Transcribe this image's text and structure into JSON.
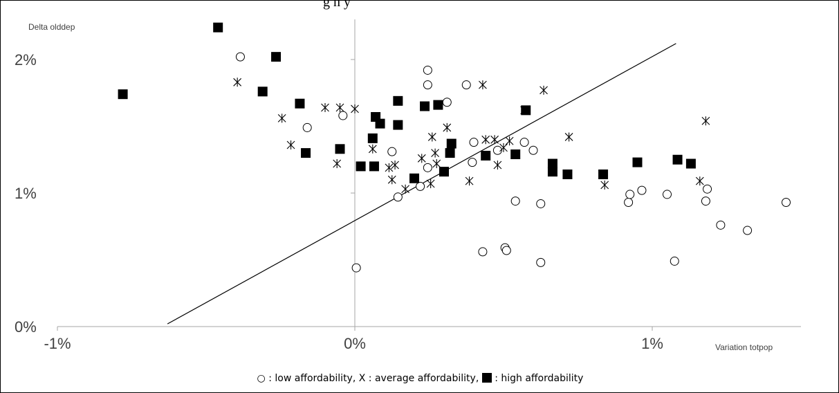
{
  "title_fragment": "g  n   y",
  "legend": {
    "low_symbol": "○",
    "low_label": ": low affordability,",
    "avg_label": "X : average affordability,",
    "high_label": ": high affordability"
  },
  "chart_data": {
    "type": "scatter",
    "xlabel": "Variation totpop",
    "ylabel": "Delta olddep",
    "xlim": [
      -1.0,
      1.5
    ],
    "ylim": [
      0.0,
      2.3
    ],
    "xticks": [
      {
        "v": -1.0,
        "label": "-1%"
      },
      {
        "v": 0.0,
        "label": "0%"
      },
      {
        "v": 1.0,
        "label": "1%"
      }
    ],
    "yticks": [
      {
        "v": 0.0,
        "label": "0%"
      },
      {
        "v": 1.0,
        "label": "1%"
      },
      {
        "v": 2.0,
        "label": "2%"
      }
    ],
    "trendline": {
      "x": [
        -0.63,
        1.08
      ],
      "y": [
        0.02,
        2.12
      ]
    },
    "series": [
      {
        "marker": "circle",
        "x": [
          -0.385,
          -0.16,
          -0.04,
          0.005,
          0.125,
          0.145,
          0.22,
          0.245,
          0.245,
          0.245,
          0.31,
          0.375,
          0.395,
          0.4,
          0.43,
          0.48,
          0.505,
          0.51,
          0.54,
          0.57,
          0.6,
          0.625,
          0.625,
          0.92,
          0.925,
          0.965,
          1.05,
          1.075,
          1.18,
          1.185,
          1.23,
          1.32,
          1.45
        ],
        "y": [
          2.02,
          1.49,
          1.58,
          0.44,
          1.31,
          0.97,
          1.05,
          1.19,
          1.81,
          1.92,
          1.68,
          1.81,
          1.23,
          1.38,
          0.56,
          1.32,
          0.59,
          0.57,
          0.94,
          1.38,
          1.32,
          0.48,
          0.92,
          0.93,
          0.99,
          1.02,
          0.99,
          0.49,
          0.94,
          1.03,
          0.76,
          0.72,
          0.93
        ]
      },
      {
        "marker": "asterisk",
        "x": [
          -0.395,
          -0.245,
          -0.215,
          -0.1,
          -0.06,
          -0.05,
          0.0,
          0.06,
          0.115,
          0.125,
          0.135,
          0.17,
          0.225,
          0.255,
          0.26,
          0.27,
          0.275,
          0.31,
          0.385,
          0.43,
          0.44,
          0.47,
          0.48,
          0.5,
          0.52,
          0.57,
          0.635,
          0.72,
          0.84,
          1.16,
          1.18
        ],
        "y": [
          1.83,
          1.56,
          1.36,
          1.64,
          1.22,
          1.64,
          1.63,
          1.33,
          1.19,
          1.1,
          1.21,
          1.03,
          1.26,
          1.07,
          1.42,
          1.3,
          1.22,
          1.49,
          1.09,
          1.81,
          1.4,
          1.4,
          1.21,
          1.34,
          1.39,
          1.62,
          1.77,
          1.42,
          1.06,
          1.09,
          1.54
        ]
      },
      {
        "marker": "square",
        "x": [
          -0.78,
          -0.46,
          -0.265,
          -0.31,
          -0.185,
          -0.165,
          -0.05,
          0.02,
          0.06,
          0.065,
          0.07,
          0.085,
          0.145,
          0.145,
          0.2,
          0.235,
          0.28,
          0.3,
          0.32,
          0.325,
          0.44,
          0.54,
          0.575,
          0.665,
          0.665,
          0.715,
          0.835,
          0.95,
          1.085,
          1.13
        ],
        "y": [
          1.74,
          2.24,
          2.02,
          1.76,
          1.67,
          1.3,
          1.33,
          1.2,
          1.41,
          1.2,
          1.57,
          1.52,
          1.69,
          1.51,
          1.11,
          1.65,
          1.66,
          1.16,
          1.3,
          1.37,
          1.28,
          1.29,
          1.62,
          1.22,
          1.16,
          1.14,
          1.14,
          1.23,
          1.25,
          1.22
        ]
      }
    ]
  }
}
